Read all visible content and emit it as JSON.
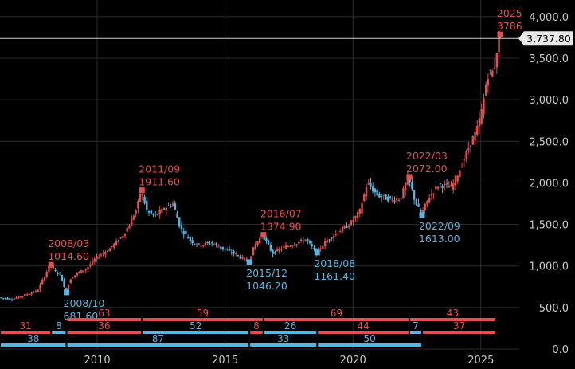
{
  "chart_data": {
    "type": "candlestick",
    "title": "",
    "xlabel": "",
    "ylabel": "",
    "xlim": [
      2006.2,
      2026.5
    ],
    "ylim": [
      0,
      4200
    ],
    "x_ticks": [
      {
        "x": 2010,
        "label": "2010"
      },
      {
        "x": 2015,
        "label": "2015"
      },
      {
        "x": 2020,
        "label": "2020"
      },
      {
        "x": 2025,
        "label": "2025"
      }
    ],
    "y_ticks": [
      {
        "y": 0,
        "label": "0.0"
      },
      {
        "y": 500,
        "label": "500.0"
      },
      {
        "y": 1000,
        "label": "1,000.0"
      },
      {
        "y": 1500,
        "label": "1,500.0"
      },
      {
        "y": 2000,
        "label": "2,000.0"
      },
      {
        "y": 2500,
        "label": "2,500.0"
      },
      {
        "y": 3000,
        "label": "3,000.0"
      },
      {
        "y": 3500,
        "label": "3,500.0"
      },
      {
        "y": 4000,
        "label": "4,000.0"
      }
    ],
    "grid": true,
    "up_color": "#e05050",
    "down_color": "#5ab4e0",
    "price_path": [
      [
        2006.2,
        620
      ],
      [
        2006.7,
        600
      ],
      [
        2007.2,
        650
      ],
      [
        2007.7,
        700
      ],
      [
        2008.2,
        1014.6
      ],
      [
        2008.4,
        930
      ],
      [
        2008.6,
        900
      ],
      [
        2008.8,
        681.6
      ],
      [
        2009.0,
        850
      ],
      [
        2009.3,
        920
      ],
      [
        2009.6,
        960
      ],
      [
        2010.0,
        1100
      ],
      [
        2010.5,
        1200
      ],
      [
        2011.0,
        1350
      ],
      [
        2011.3,
        1500
      ],
      [
        2011.6,
        1700
      ],
      [
        2011.75,
        1911.6
      ],
      [
        2012.0,
        1650
      ],
      [
        2012.3,
        1600
      ],
      [
        2012.7,
        1700
      ],
      [
        2013.0,
        1750
      ],
      [
        2013.3,
        1450
      ],
      [
        2013.7,
        1300
      ],
      [
        2014.0,
        1250
      ],
      [
        2014.5,
        1280
      ],
      [
        2015.0,
        1200
      ],
      [
        2015.4,
        1150
      ],
      [
        2015.95,
        1046.2
      ],
      [
        2016.2,
        1250
      ],
      [
        2016.5,
        1374.9
      ],
      [
        2016.9,
        1150
      ],
      [
        2017.3,
        1220
      ],
      [
        2017.8,
        1270
      ],
      [
        2018.2,
        1320
      ],
      [
        2018.6,
        1161.4
      ],
      [
        2019.0,
        1300
      ],
      [
        2019.5,
        1420
      ],
      [
        2019.9,
        1500
      ],
      [
        2020.3,
        1650
      ],
      [
        2020.6,
        2000
      ],
      [
        2021.0,
        1850
      ],
      [
        2021.5,
        1800
      ],
      [
        2021.9,
        1810
      ],
      [
        2022.2,
        2072
      ],
      [
        2022.45,
        1800
      ],
      [
        2022.7,
        1613
      ],
      [
        2023.0,
        1820
      ],
      [
        2023.4,
        1980
      ],
      [
        2023.9,
        1950
      ],
      [
        2024.2,
        2150
      ],
      [
        2024.6,
        2450
      ],
      [
        2024.9,
        2650
      ],
      [
        2025.1,
        2900
      ],
      [
        2025.3,
        3300
      ],
      [
        2025.55,
        3350
      ],
      [
        2025.75,
        3786
      ]
    ],
    "last_price": {
      "value": 3737.8,
      "label": "3,737.80"
    },
    "annotations": [
      {
        "type": "high",
        "x": 2008.2,
        "y": 1014.6,
        "date": "2008/03",
        "value": "1014.60"
      },
      {
        "type": "low",
        "x": 2008.8,
        "y": 681.6,
        "date": "2008/10",
        "value": "681.60"
      },
      {
        "type": "high",
        "x": 2011.75,
        "y": 1911.6,
        "date": "2011/09",
        "value": "1911.60"
      },
      {
        "type": "low",
        "x": 2015.95,
        "y": 1046.2,
        "date": "2015/12",
        "value": "1046.20"
      },
      {
        "type": "high",
        "x": 2016.5,
        "y": 1374.9,
        "date": "2016/07",
        "value": "1374.90"
      },
      {
        "type": "low",
        "x": 2018.6,
        "y": 1161.4,
        "date": "2018/08",
        "value": "1161.40"
      },
      {
        "type": "high",
        "x": 2022.2,
        "y": 2072,
        "date": "2022/03",
        "value": "2072.00"
      },
      {
        "type": "low",
        "x": 2022.7,
        "y": 1613,
        "date": "2022/09",
        "value": "1613.00"
      },
      {
        "type": "high",
        "x": 2025.75,
        "y": 3786,
        "date": "2025",
        "value": "3786"
      }
    ],
    "trend_segments": [
      {
        "row": 1,
        "dir": "up",
        "x0": 2008.8,
        "x1": 2011.75,
        "label": "63"
      },
      {
        "row": 1,
        "dir": "up",
        "x0": 2011.75,
        "x1": 2016.5,
        "label": "59"
      },
      {
        "row": 1,
        "dir": "up",
        "x0": 2016.5,
        "x1": 2022.2,
        "label": "69"
      },
      {
        "row": 1,
        "dir": "up",
        "x0": 2022.2,
        "x1": 2026.0,
        "label": "43"
      },
      {
        "row": 2,
        "dir": "up",
        "x0": 2006.2,
        "x1": 2008.2,
        "label": "31"
      },
      {
        "row": 2,
        "dir": "down",
        "x0": 2008.2,
        "x1": 2008.8,
        "label": "8"
      },
      {
        "row": 2,
        "dir": "up",
        "x0": 2008.8,
        "x1": 2011.75,
        "label": "36"
      },
      {
        "row": 2,
        "dir": "down",
        "x0": 2011.75,
        "x1": 2015.95,
        "label": "52"
      },
      {
        "row": 2,
        "dir": "up",
        "x0": 2015.95,
        "x1": 2016.5,
        "label": "8"
      },
      {
        "row": 2,
        "dir": "down",
        "x0": 2016.5,
        "x1": 2018.6,
        "label": "26"
      },
      {
        "row": 2,
        "dir": "up",
        "x0": 2018.6,
        "x1": 2022.2,
        "label": "44"
      },
      {
        "row": 2,
        "dir": "down",
        "x0": 2022.2,
        "x1": 2022.7,
        "label": "7"
      },
      {
        "row": 2,
        "dir": "up",
        "x0": 2022.7,
        "x1": 2026.0,
        "label": "37"
      },
      {
        "row": 3,
        "dir": "down",
        "x0": 2006.2,
        "x1": 2008.8,
        "label": "38"
      },
      {
        "row": 3,
        "dir": "down",
        "x0": 2008.8,
        "x1": 2015.95,
        "label": "87"
      },
      {
        "row": 3,
        "dir": "down",
        "x0": 2015.95,
        "x1": 2018.6,
        "label": "33"
      },
      {
        "row": 3,
        "dir": "down",
        "x0": 2018.6,
        "x1": 2022.7,
        "label": "50"
      }
    ]
  }
}
